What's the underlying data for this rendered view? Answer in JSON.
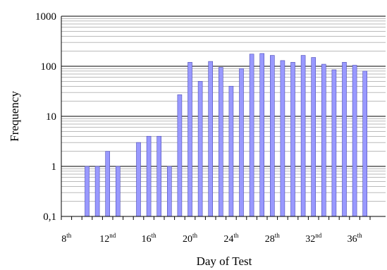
{
  "chart_data": {
    "type": "bar",
    "title": "",
    "xlabel": "Day of Test",
    "ylabel": "Frequency",
    "y_scale": "log",
    "ylim": [
      0.1,
      1000
    ],
    "y_ticks": [
      "0,1",
      "1",
      "10",
      "100",
      "1000"
    ],
    "grid": "horizontal minor and major lines",
    "bar_color": "#9999ff",
    "bar_edge_color": "#4b4bb5",
    "x_ticks": [
      {
        "day": 8,
        "num": "8",
        "suffix": "th"
      },
      {
        "day": 12,
        "num": "12",
        "suffix": "nd"
      },
      {
        "day": 16,
        "num": "16",
        "suffix": "th"
      },
      {
        "day": 20,
        "num": "20",
        "suffix": "th"
      },
      {
        "day": 24,
        "num": "24",
        "suffix": "th"
      },
      {
        "day": 28,
        "num": "28",
        "suffix": "th"
      },
      {
        "day": 32,
        "num": "32",
        "suffix": "nd"
      },
      {
        "day": 36,
        "num": "36",
        "suffix": "th"
      }
    ],
    "days": [
      8,
      9,
      10,
      11,
      12,
      13,
      14,
      15,
      16,
      17,
      18,
      19,
      20,
      21,
      22,
      23,
      24,
      25,
      26,
      27,
      28,
      29,
      30,
      31,
      32,
      33,
      34,
      35,
      36,
      37
    ],
    "values": [
      null,
      null,
      1,
      1,
      2,
      1,
      null,
      3,
      4,
      4,
      1,
      27,
      120,
      50,
      125,
      95,
      40,
      90,
      175,
      180,
      165,
      130,
      120,
      165,
      150,
      110,
      85,
      120,
      105,
      80
    ]
  }
}
